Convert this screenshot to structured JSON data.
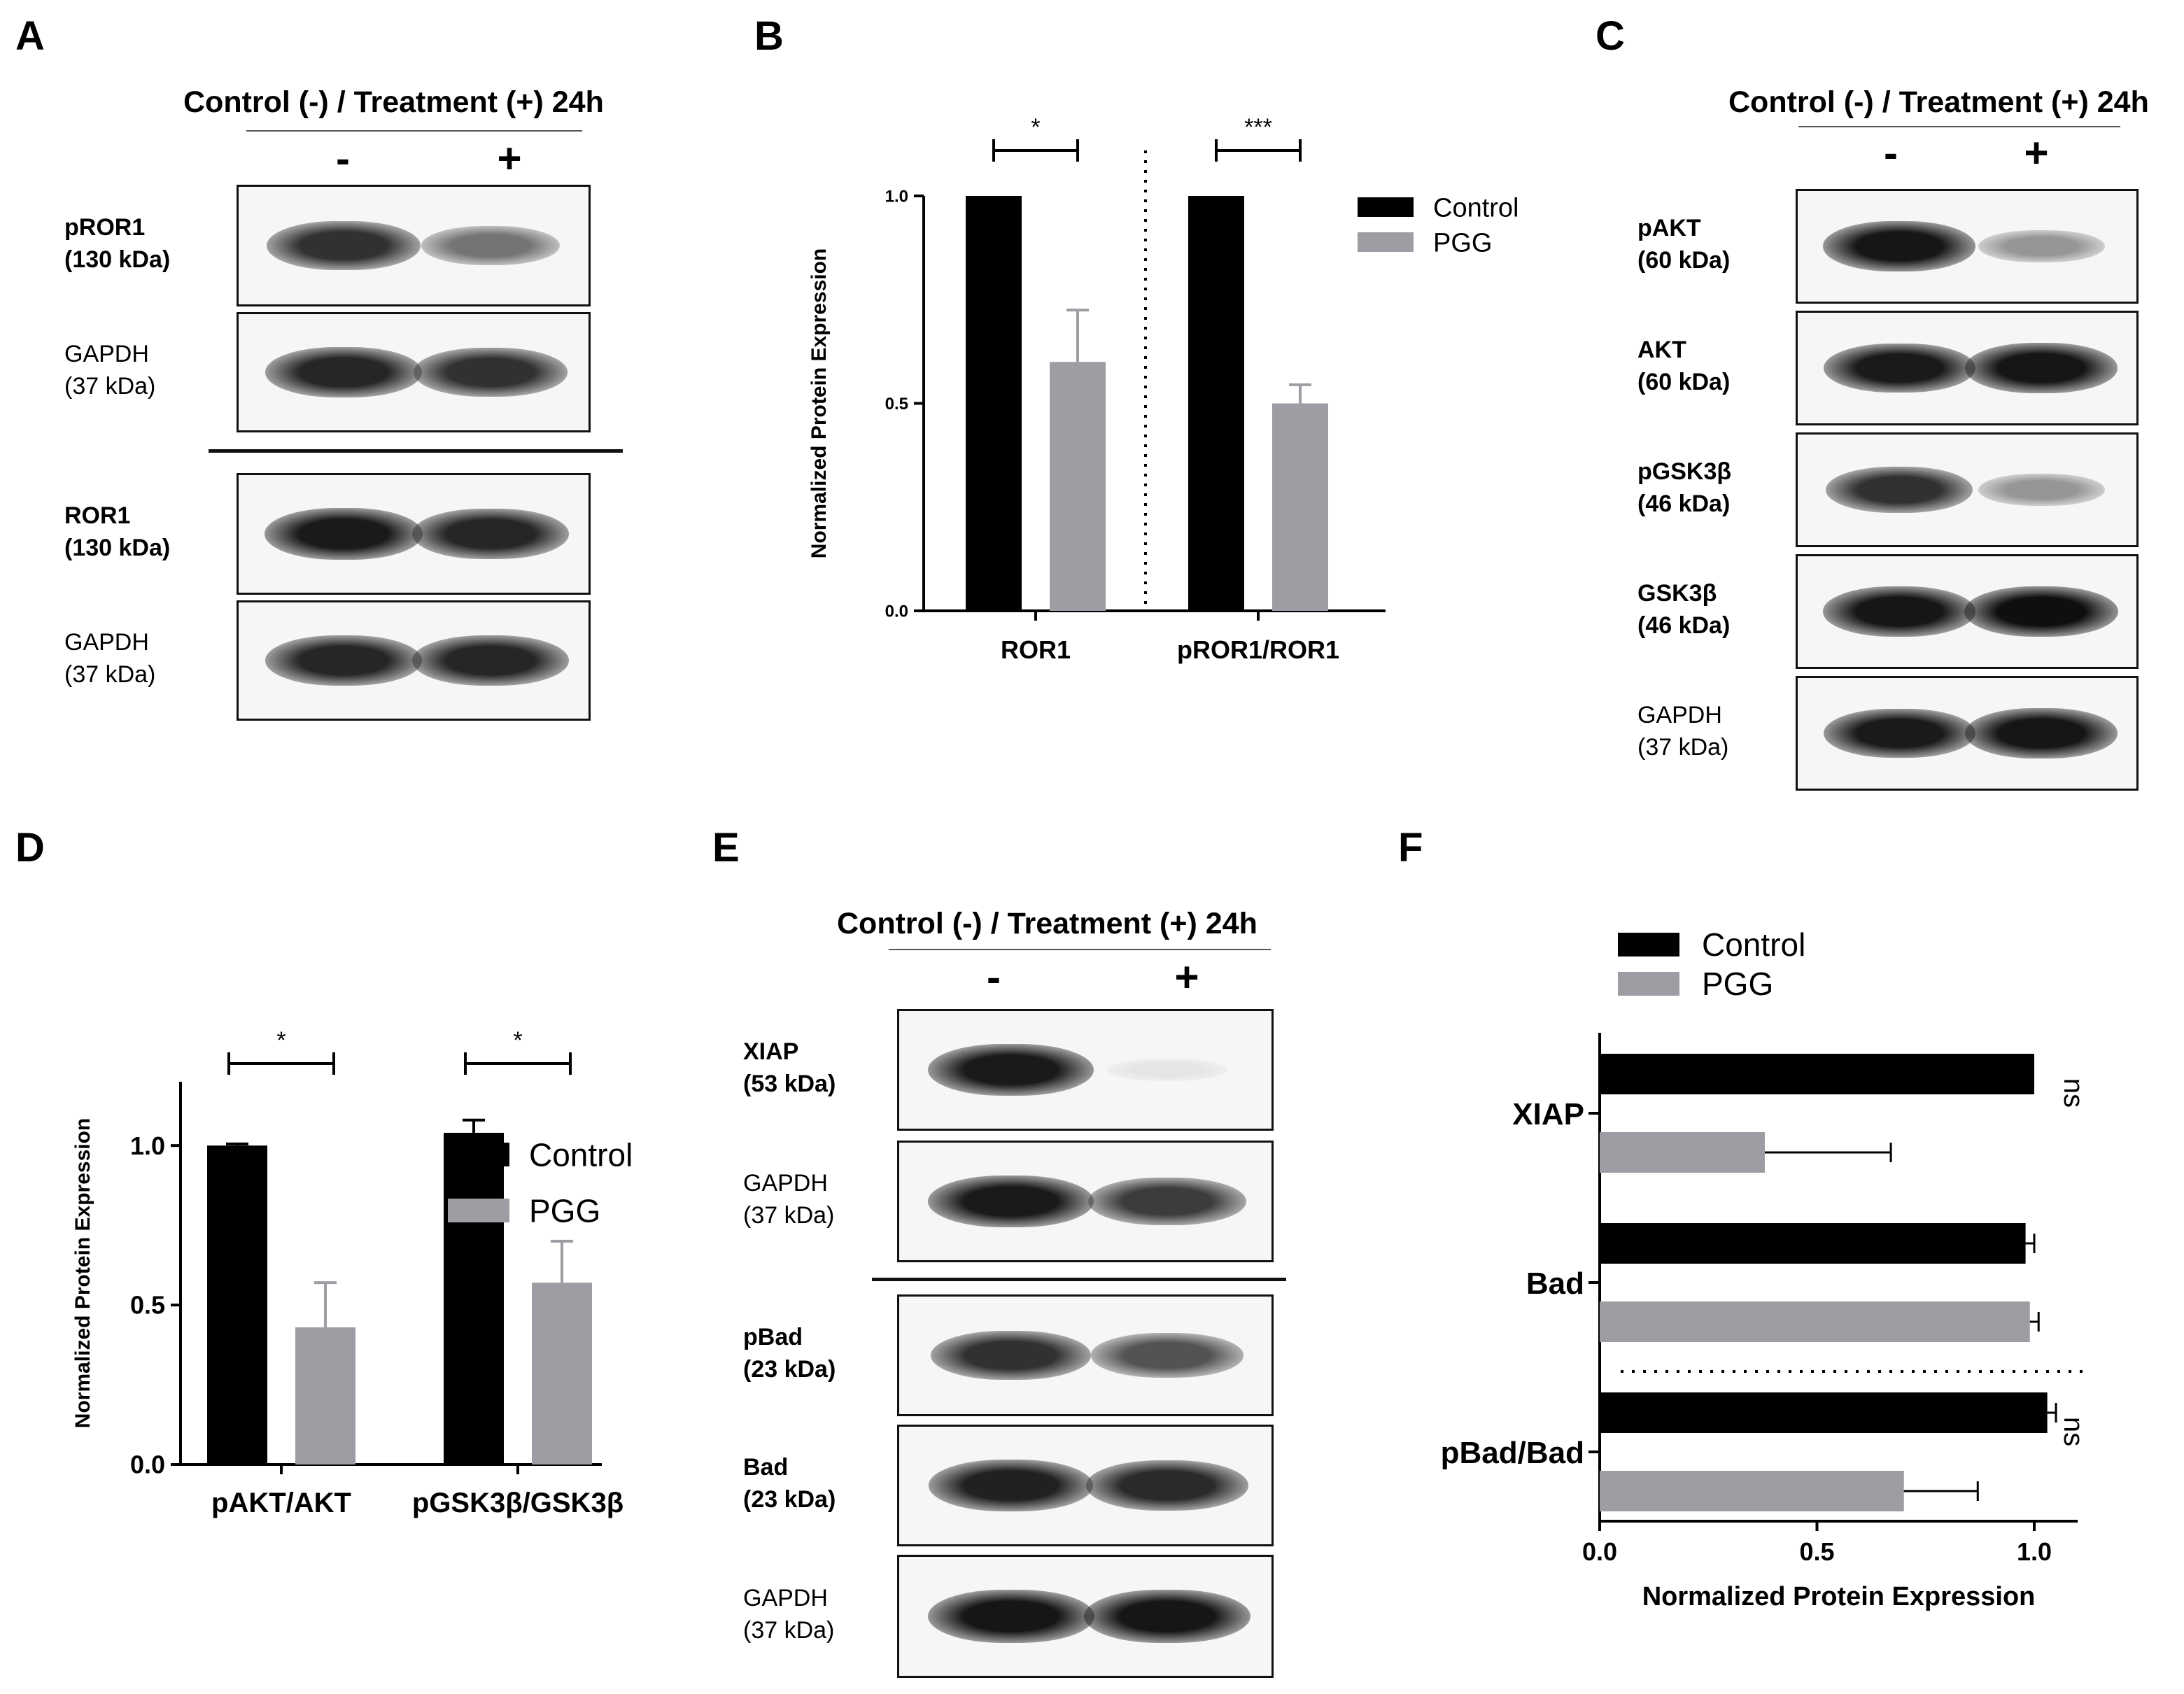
{
  "panels": {
    "A": {
      "letter": "A",
      "title": "Control (-) / Treatment (+) 24h",
      "minus": "-",
      "plus": "+",
      "blots": [
        {
          "name": "pROR1",
          "kda": "(130 kDa)",
          "bold": true
        },
        {
          "name": "GAPDH",
          "kda": "(37 kDa)",
          "bold": false
        },
        {
          "name": "ROR1",
          "kda": "(130 kDa)",
          "bold": true
        },
        {
          "name": "GAPDH",
          "kda": "(37 kDa)",
          "bold": false
        }
      ]
    },
    "B": {
      "letter": "B"
    },
    "C": {
      "letter": "C",
      "title": "Control (-) / Treatment (+) 24h",
      "minus": "-",
      "plus": "+",
      "blots": [
        {
          "name": "pAKT",
          "kda": "(60 kDa)",
          "bold": true
        },
        {
          "name": "AKT",
          "kda": "(60 kDa)",
          "bold": true
        },
        {
          "name": "pGSK3β",
          "kda": "(46 kDa)",
          "bold": true
        },
        {
          "name": "GSK3β",
          "kda": "(46 kDa)",
          "bold": true
        },
        {
          "name": "GAPDH",
          "kda": "(37 kDa)",
          "bold": false
        }
      ]
    },
    "D": {
      "letter": "D"
    },
    "E": {
      "letter": "E",
      "title": "Control (-) / Treatment (+) 24h",
      "minus": "-",
      "plus": "+",
      "blots": [
        {
          "name": "XIAP",
          "kda": "(53 kDa)",
          "bold": true
        },
        {
          "name": "GAPDH",
          "kda": "(37 kDa)",
          "bold": false
        },
        {
          "name": "pBad",
          "kda": "(23 kDa)",
          "bold": true
        },
        {
          "name": "Bad",
          "kda": "(23 kDa)",
          "bold": true
        },
        {
          "name": "GAPDH",
          "kda": "(37 kDa)",
          "bold": false
        }
      ]
    },
    "F": {
      "letter": "F"
    }
  },
  "band_intensity": {
    "A": [
      [
        0.85,
        0.55
      ],
      [
        0.9,
        0.85
      ],
      [
        0.95,
        0.9
      ],
      [
        0.9,
        0.9
      ]
    ],
    "C": [
      [
        0.97,
        0.4
      ],
      [
        0.95,
        0.97
      ],
      [
        0.85,
        0.4
      ],
      [
        0.97,
        1.0
      ],
      [
        0.95,
        0.97
      ]
    ],
    "E": [
      [
        0.95,
        0.05
      ],
      [
        0.95,
        0.8
      ],
      [
        0.85,
        0.7
      ],
      [
        0.92,
        0.88
      ],
      [
        0.97,
        0.97
      ]
    ]
  },
  "colors": {
    "control": "#000000",
    "pgg": "#9d9ea3",
    "blot_bg": "#f6f6f6"
  },
  "chart_data": [
    {
      "panel": "B",
      "type": "bar",
      "categories": [
        "ROR1",
        "pROR1/ROR1"
      ],
      "series": [
        {
          "name": "Control",
          "values": [
            1.0,
            1.0
          ],
          "errors": [
            0,
            0
          ]
        },
        {
          "name": "PGG",
          "values": [
            0.6,
            0.5
          ],
          "errors": [
            0.125,
            0.045
          ]
        }
      ],
      "ylabel": "Normalized Protein Expression",
      "ylim": [
        0,
        1.0
      ],
      "yticks": [
        "0.0",
        "0.5",
        "1.0"
      ],
      "significance": [
        "*",
        "***"
      ],
      "legend": "top-right",
      "divider": "dotted line between categories"
    },
    {
      "panel": "D",
      "type": "bar",
      "categories": [
        "pAKT/AKT",
        "pGSK3β/GSK3β"
      ],
      "series": [
        {
          "name": "Control",
          "values": [
            1.0,
            1.04
          ],
          "errors": [
            0.005,
            0.04
          ]
        },
        {
          "name": "PGG",
          "values": [
            0.43,
            0.57
          ],
          "errors": [
            0.14,
            0.13
          ]
        }
      ],
      "ylabel": "Normalized Protein Expression",
      "ylim": [
        0,
        1.2
      ],
      "yticks": [
        "0.0",
        "0.5",
        "1.0"
      ],
      "significance": [
        "*",
        "*"
      ],
      "legend": "top"
    },
    {
      "panel": "F",
      "type": "bar",
      "orientation": "horizontal",
      "categories": [
        "XIAP",
        "Bad",
        "pBad/Bad"
      ],
      "series": [
        {
          "name": "Control",
          "values": [
            1.0,
            0.98,
            1.03
          ],
          "errors": [
            0,
            0.02,
            0.02
          ]
        },
        {
          "name": "PGG",
          "values": [
            0.38,
            0.99,
            0.7
          ],
          "errors": [
            0.29,
            0.02,
            0.17
          ]
        }
      ],
      "xlabel": "Normalized Protein Expression",
      "xlim": [
        0,
        1.1
      ],
      "xticks": [
        "0.0",
        "0.5",
        "1.0"
      ],
      "significance": [
        "ns",
        "",
        "ns"
      ],
      "legend": "top-left",
      "divider": "dotted line between Bad and pBad/Bad"
    }
  ]
}
